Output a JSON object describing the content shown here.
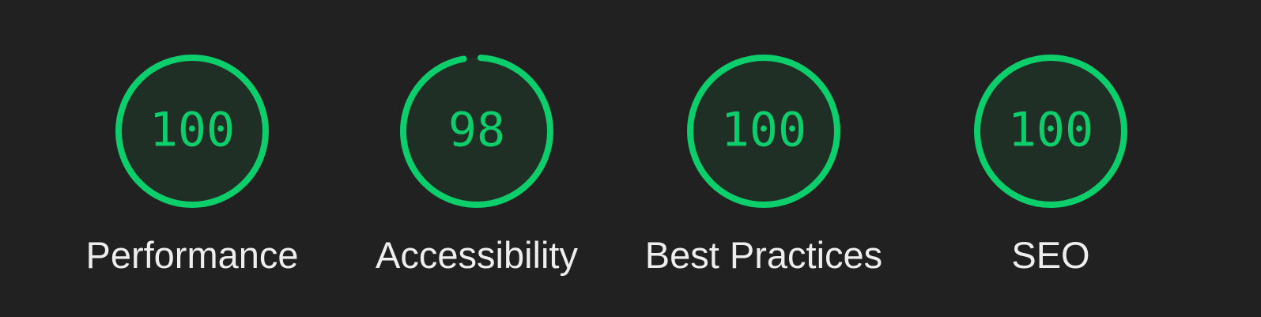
{
  "colors": {
    "background": "#212121",
    "pass": "#0cce6b",
    "pass_fill": "#1f2f25",
    "label": "#eeeeee"
  },
  "categories": [
    {
      "label": "Performance",
      "score": 100
    },
    {
      "label": "Accessibility",
      "score": 98
    },
    {
      "label": "Best Practices",
      "score": 100
    },
    {
      "label": "SEO",
      "score": 100
    }
  ]
}
